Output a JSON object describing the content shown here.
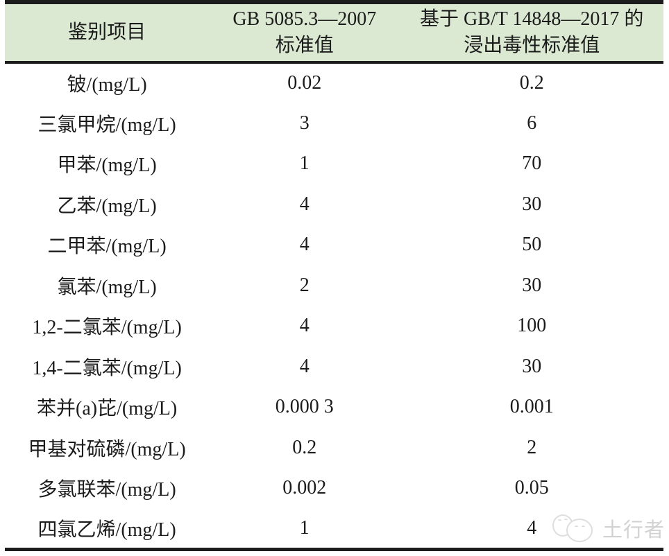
{
  "table": {
    "header": {
      "col_item": "鉴别项目",
      "col_gb5085_line1": "GB 5085.3—2007",
      "col_gb5085_line2": "标准值",
      "col_gb14848_line1": "基于 GB/T 14848—2017 的",
      "col_gb14848_line2": "浸出毒性标准值"
    },
    "rows": [
      {
        "item": "铍/(mg/L)",
        "gb5085": "0.02",
        "gb14848": "0.2"
      },
      {
        "item": "三氯甲烷/(mg/L)",
        "gb5085": "3",
        "gb14848": "6"
      },
      {
        "item": "甲苯/(mg/L)",
        "gb5085": "1",
        "gb14848": "70"
      },
      {
        "item": "乙苯/(mg/L)",
        "gb5085": "4",
        "gb14848": "30"
      },
      {
        "item": "二甲苯/(mg/L)",
        "gb5085": "4",
        "gb14848": "50"
      },
      {
        "item": "氯苯/(mg/L)",
        "gb5085": "2",
        "gb14848": "30"
      },
      {
        "item": "1,2-二氯苯/(mg/L)",
        "gb5085": "4",
        "gb14848": "100"
      },
      {
        "item": "1,4-二氯苯/(mg/L)",
        "gb5085": "4",
        "gb14848": "30"
      },
      {
        "item": "苯并(a)芘/(mg/L)",
        "gb5085": "0.000 3",
        "gb14848": "0.001"
      },
      {
        "item": "甲基对硫磷/(mg/L)",
        "gb5085": "0.2",
        "gb14848": "2"
      },
      {
        "item": "多氯联苯/(mg/L)",
        "gb5085": "0.002",
        "gb14848": "0.05"
      },
      {
        "item": "四氯乙烯/(mg/L)",
        "gb5085": "1",
        "gb14848": "4"
      }
    ]
  },
  "watermark": {
    "label": "土行者"
  },
  "colors": {
    "header_bg": "#dbe8d2",
    "border": "#1c1c1c",
    "text": "#1b1b1b",
    "watermark": "#d2d2d2"
  }
}
